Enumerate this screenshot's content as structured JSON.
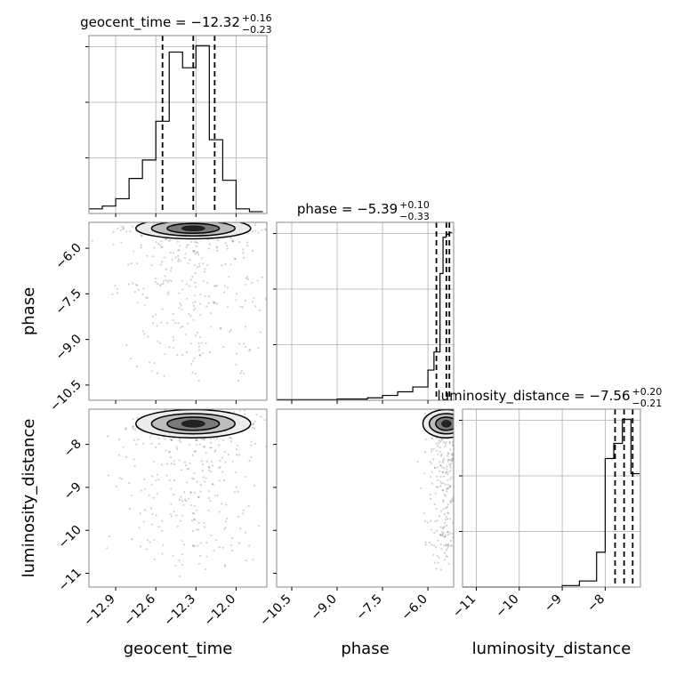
{
  "chart_data": {
    "type": "corner",
    "params": [
      "geocent_time",
      "phase",
      "luminosity_distance"
    ],
    "titles": {
      "geocent_time": {
        "label": "geocent_time = ",
        "median": "−12.32",
        "plus": "+0.16",
        "minus": "−0.23"
      },
      "phase": {
        "label": "phase = ",
        "median": "−5.39",
        "plus": "+0.10",
        "minus": "−0.33"
      },
      "luminosity_distance": {
        "label": "luminosity_distance = ",
        "median": "−7.56",
        "plus": "+0.20",
        "minus": "−0.21"
      }
    },
    "axis_labels": {
      "geocent_time": "geocent_time",
      "phase": "phase",
      "luminosity_distance": "luminosity_distance"
    },
    "ranges": {
      "geocent_time": [
        -13.1,
        -11.77
      ],
      "phase": [
        -11.0,
        -5.15
      ],
      "luminosity_distance": [
        -11.32,
        -7.18
      ]
    },
    "ticks": {
      "geocent_time": {
        "values": [
          -12.9,
          -12.6,
          -12.3,
          -12.0
        ],
        "labels": [
          "−12.9",
          "−12.6",
          "−12.3",
          "−12.0"
        ]
      },
      "phase": {
        "values": [
          -10.5,
          -9.0,
          -7.5,
          -6.0
        ],
        "labels": [
          "−10.5",
          "−9.0",
          "−7.5",
          "−6.0"
        ]
      },
      "luminosity_distance": {
        "values": [
          -11,
          -10,
          -9,
          -8
        ],
        "labels": [
          "−11",
          "−10",
          "−9",
          "−8"
        ]
      }
    },
    "quantiles": {
      "geocent_time": [
        -12.55,
        -12.32,
        -12.16
      ],
      "phase": [
        -5.72,
        -5.39,
        -5.29
      ],
      "luminosity_distance": [
        -7.77,
        -7.56,
        -7.36
      ]
    },
    "histograms": {
      "geocent_time": {
        "edges": [
          -13.1,
          -13.0,
          -12.9,
          -12.8,
          -12.7,
          -12.6,
          -12.5,
          -12.4,
          -12.3,
          -12.2,
          -12.1,
          -12.0,
          -11.9,
          -11.8
        ],
        "counts": [
          5,
          8,
          16,
          38,
          58,
          100,
          175,
          158,
          182,
          80,
          36,
          5,
          2
        ]
      },
      "phase": {
        "edges": [
          -11.0,
          -10.0,
          -9.0,
          -8.0,
          -7.5,
          -7.0,
          -6.5,
          -6.0,
          -5.8,
          -5.6,
          -5.5,
          -5.4,
          -5.3,
          -5.2
        ],
        "counts": [
          1,
          1,
          2,
          4,
          8,
          14,
          22,
          50,
          80,
          210,
          270,
          275,
          278
        ]
      },
      "luminosity_distance": {
        "edges": [
          -11.32,
          -9.0,
          -8.6,
          -8.2,
          -8.0,
          -7.8,
          -7.6,
          -7.4,
          -7.2
        ],
        "counts": [
          0,
          2,
          8,
          46,
          170,
          190,
          222,
          150
        ]
      }
    },
    "grid": true,
    "legend": "none"
  }
}
